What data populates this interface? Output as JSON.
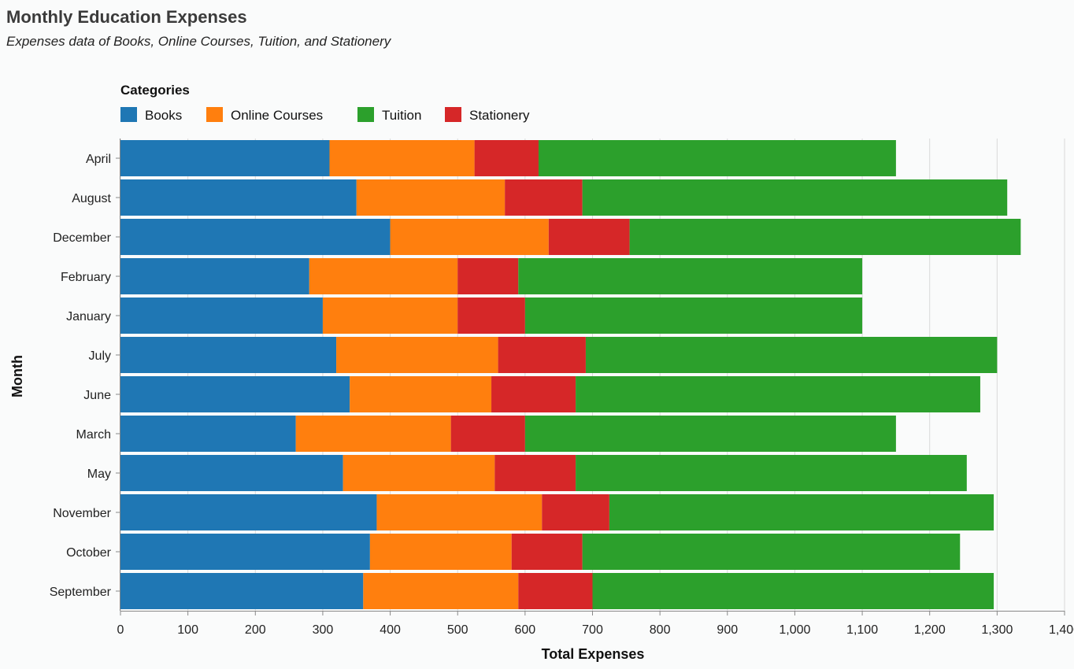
{
  "chart_data": {
    "type": "bar",
    "orientation": "horizontal",
    "stacked": true,
    "title": "Monthly Education Expenses",
    "subtitle": "Expenses data of Books, Online Courses, Tuition, and Stationery",
    "xlabel": "Total Expenses",
    "ylabel": "Month",
    "xlim": [
      0,
      1400
    ],
    "x_ticks": [
      0,
      100,
      200,
      300,
      400,
      500,
      600,
      700,
      800,
      900,
      1000,
      1100,
      1200,
      1300,
      1400
    ],
    "x_tick_labels": [
      "0",
      "100",
      "200",
      "300",
      "400",
      "500",
      "600",
      "700",
      "800",
      "900",
      "1,000",
      "1,100",
      "1,200",
      "1,300",
      "1,400"
    ],
    "grid": true,
    "legend": {
      "title": "Categories",
      "placement": "top-left"
    },
    "stack_order": [
      "Books",
      "Online Courses",
      "Stationery",
      "Tuition"
    ],
    "categories": [
      "April",
      "August",
      "December",
      "February",
      "January",
      "July",
      "June",
      "March",
      "May",
      "November",
      "October",
      "September"
    ],
    "series": [
      {
        "name": "Books",
        "color": "#1f77b4",
        "values": [
          310,
          350,
          400,
          280,
          300,
          320,
          340,
          260,
          330,
          380,
          370,
          360
        ]
      },
      {
        "name": "Online Courses",
        "color": "#ff7f0e",
        "values": [
          215,
          220,
          235,
          220,
          200,
          240,
          210,
          230,
          225,
          245,
          210,
          230
        ]
      },
      {
        "name": "Tuition",
        "color": "#2ca02c",
        "values": [
          530,
          630,
          580,
          510,
          500,
          610,
          600,
          550,
          580,
          570,
          560,
          595
        ]
      },
      {
        "name": "Stationery",
        "color": "#d62728",
        "values": [
          95,
          115,
          120,
          90,
          100,
          130,
          125,
          110,
          120,
          100,
          105,
          110
        ]
      }
    ]
  }
}
